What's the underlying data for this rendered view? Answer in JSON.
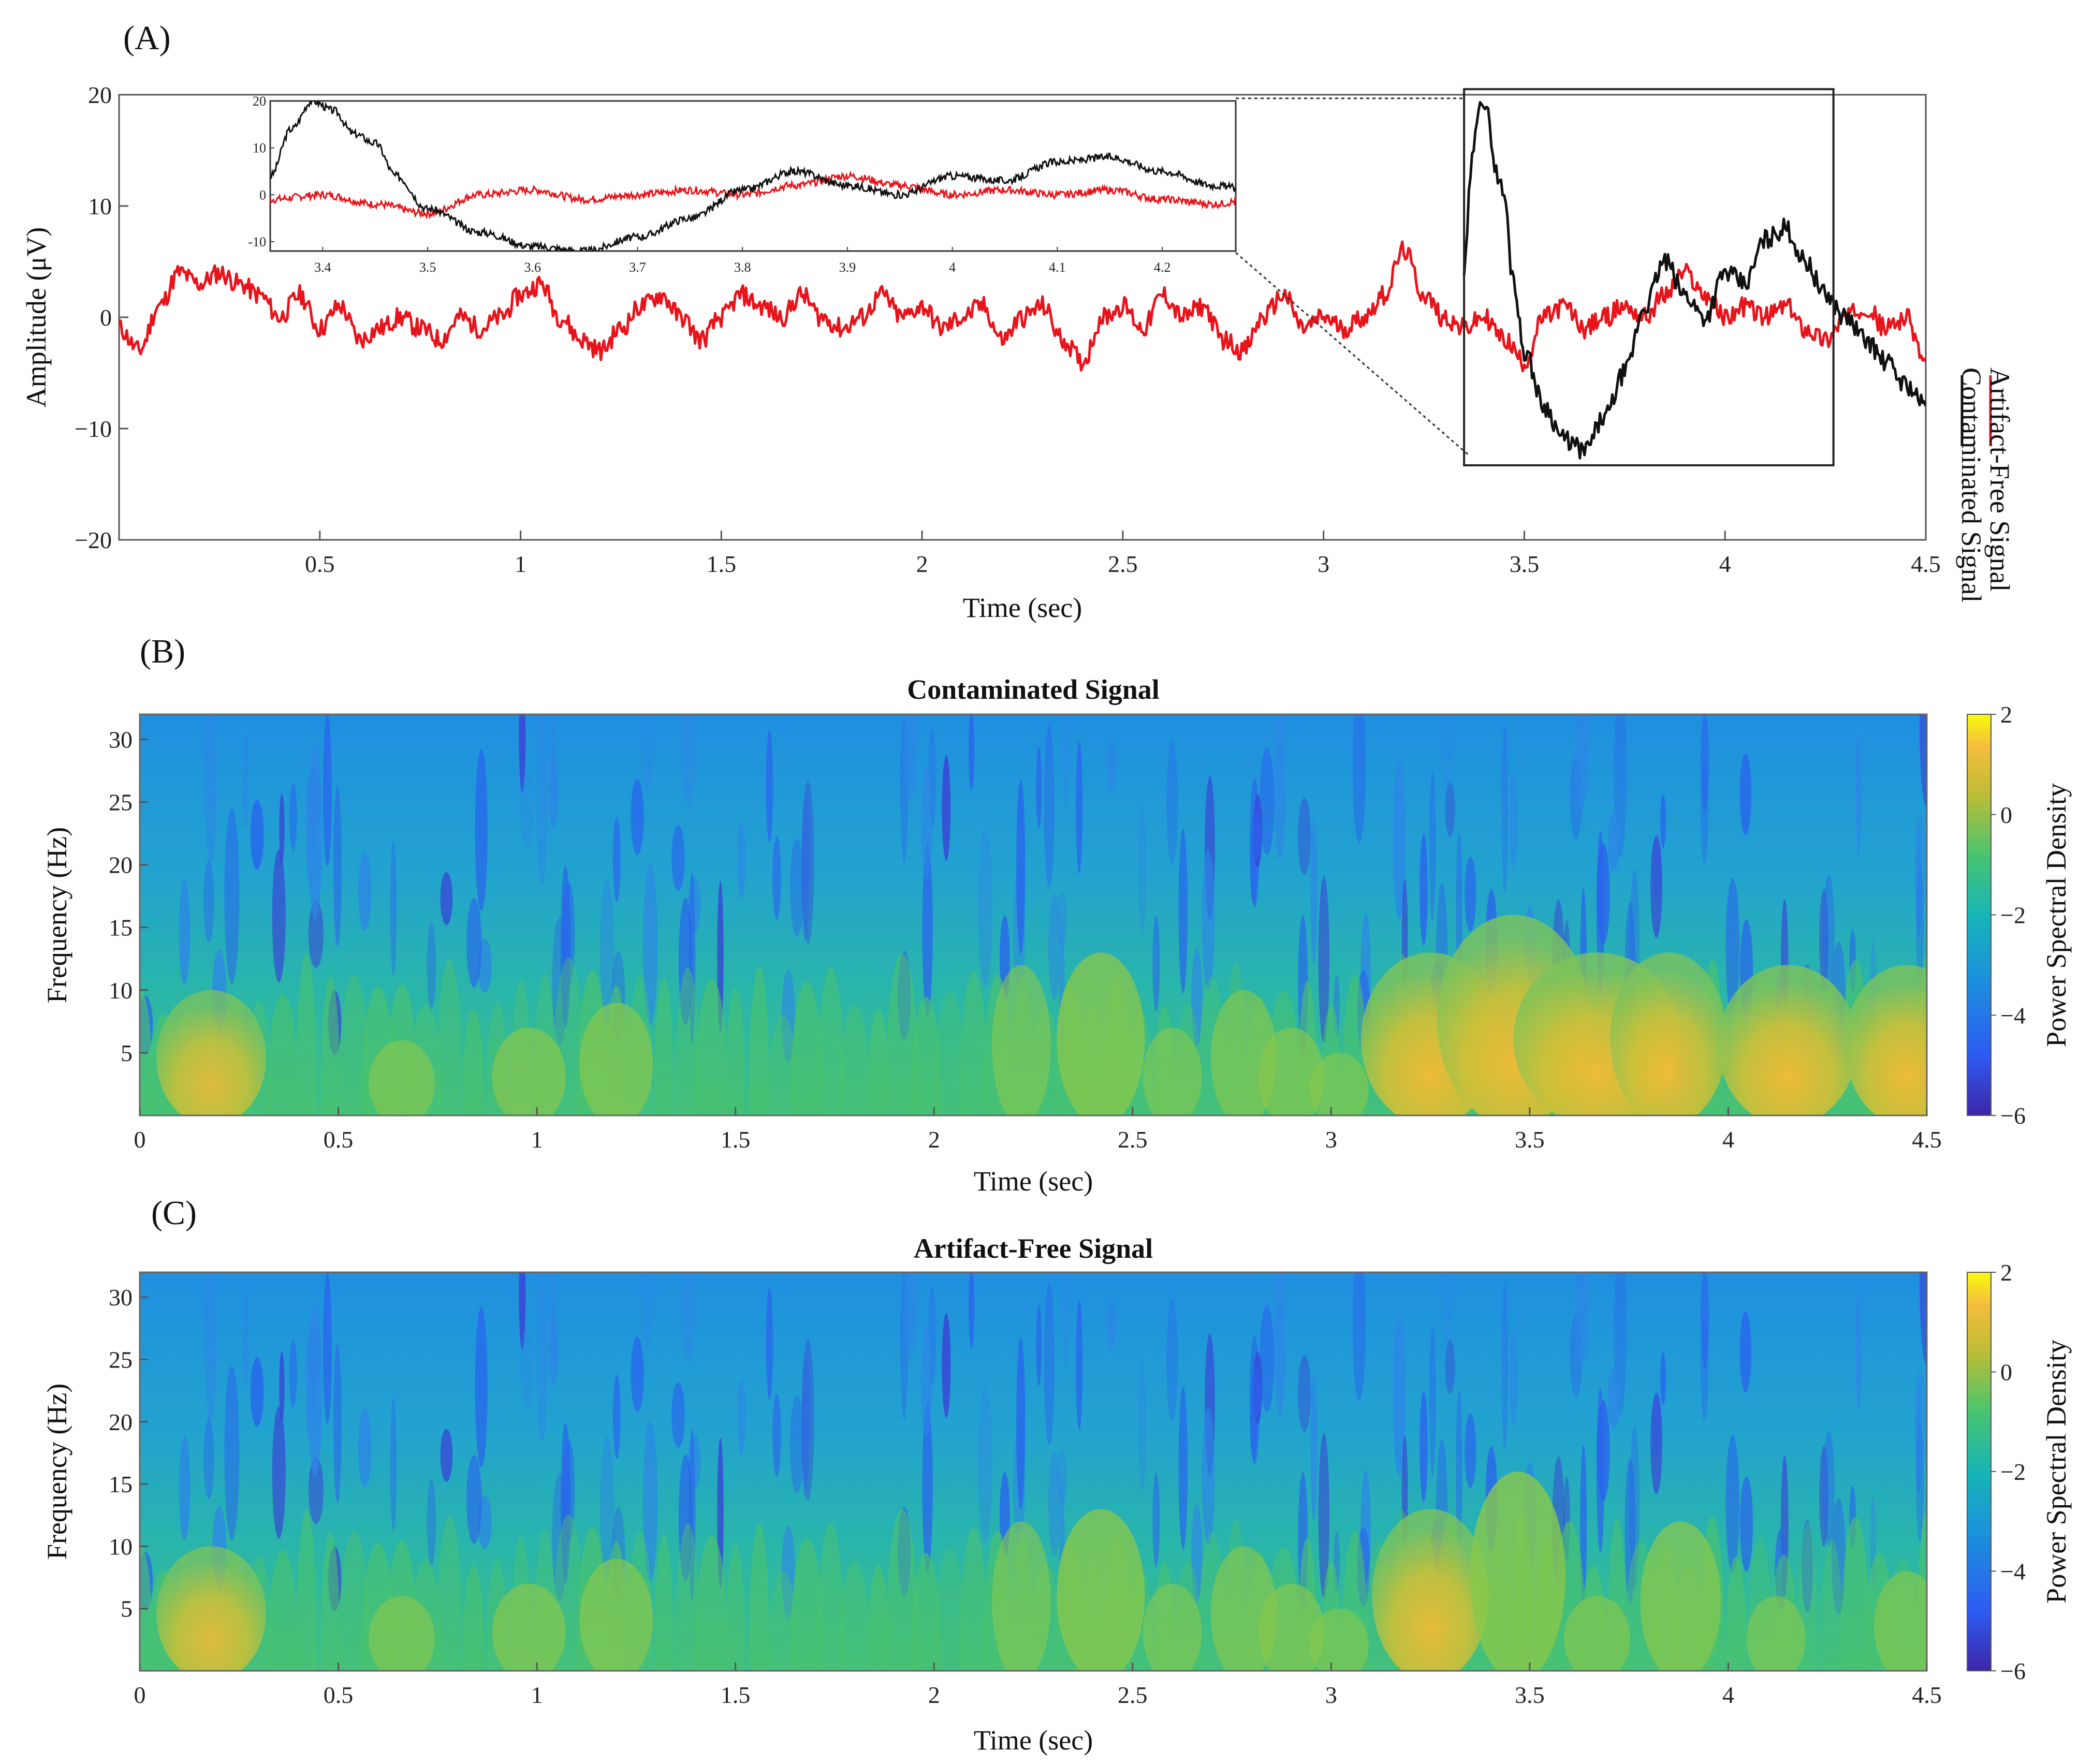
{
  "chart_data": [
    {
      "panel": "(A)",
      "type": "line",
      "xlabel": "Time (sec)",
      "ylabel": "Amplitude (μV)",
      "xlim": [
        0,
        4.5
      ],
      "ylim": [
        -20,
        20
      ],
      "xticks": [
        0.5,
        1,
        1.5,
        2,
        2.5,
        3,
        3.5,
        4,
        4.5
      ],
      "yticks": [
        -20,
        -10,
        0,
        10,
        20
      ],
      "xtick_labels": [
        "0.5",
        "1",
        "1.5",
        "2",
        "2.5",
        "3",
        "3.5",
        "4",
        "4.5"
      ],
      "ytick_labels": [
        "−20",
        "−10",
        "0",
        "10",
        "20"
      ],
      "legend": [
        "Contaminated Signal",
        "Artifact-Free Signal"
      ],
      "legend_position": "right, rotated vertical",
      "series": [
        {
          "name": "Artifact-Free Signal",
          "color": "#e8141b",
          "x": [
            0,
            0.05,
            0.1,
            0.15,
            0.2,
            0.25,
            0.3,
            0.35,
            0.4,
            0.45,
            0.5,
            0.55,
            0.6,
            0.65,
            0.7,
            0.75,
            0.8,
            0.85,
            0.9,
            0.95,
            1.0,
            1.05,
            1.1,
            1.15,
            1.2,
            1.25,
            1.3,
            1.35,
            1.4,
            1.45,
            1.5,
            1.55,
            1.6,
            1.65,
            1.7,
            1.75,
            1.8,
            1.85,
            1.9,
            1.95,
            2.0,
            2.05,
            2.1,
            2.15,
            2.2,
            2.25,
            2.3,
            2.35,
            2.4,
            2.45,
            2.5,
            2.55,
            2.6,
            2.65,
            2.7,
            2.75,
            2.8,
            2.85,
            2.9,
            2.95,
            3.0,
            3.05,
            3.1,
            3.15,
            3.2,
            3.25,
            3.3,
            3.35,
            3.4,
            3.45,
            3.5,
            3.55,
            3.6,
            3.65,
            3.7,
            3.75,
            3.8,
            3.85,
            3.9,
            3.95,
            4.0,
            4.05,
            4.1,
            4.15,
            4.2,
            4.25,
            4.3,
            4.35,
            4.4,
            4.45,
            4.5
          ],
          "y": [
            -1,
            -3,
            1,
            4,
            3,
            4,
            3,
            2,
            0,
            2,
            -1,
            1,
            -2,
            -1,
            0,
            -1,
            -2,
            0,
            -1,
            0,
            2,
            3,
            0,
            -2,
            -3,
            -1,
            1,
            2,
            0,
            -2,
            0,
            2,
            1,
            0,
            2,
            0,
            -1,
            0,
            2,
            0,
            1,
            -1,
            0,
            1,
            -2,
            0,
            1,
            -2,
            -4,
            0,
            1,
            -1,
            2,
            0,
            1,
            -2,
            -3,
            0,
            2,
            -1,
            0,
            -1,
            0,
            2,
            6,
            2,
            0,
            -1,
            0,
            -2,
            -4,
            0,
            1,
            -1,
            0,
            1,
            0,
            2,
            4,
            2,
            0,
            1,
            0,
            1,
            -1,
            -2,
            0,
            1,
            -1,
            0,
            -4
          ]
        },
        {
          "name": "Contaminated Signal",
          "color": "#111111",
          "x": [
            3.35,
            3.37,
            3.39,
            3.41,
            3.43,
            3.45,
            3.47,
            3.5,
            3.55,
            3.6,
            3.65,
            3.7,
            3.75,
            3.8,
            3.85,
            3.9,
            3.95,
            4.0,
            4.05,
            4.1,
            4.15,
            4.2,
            4.25,
            4.3,
            4.35,
            4.4,
            4.45,
            4.5
          ],
          "y": [
            4,
            14,
            20,
            18,
            13,
            11,
            4,
            -3,
            -8,
            -11,
            -12,
            -9,
            -5,
            1,
            5,
            2,
            0,
            4,
            3,
            7,
            8,
            5,
            2,
            0,
            -2,
            -4,
            -6,
            -8
          ]
        }
      ],
      "inset": {
        "xlim": [
          3.35,
          4.27
        ],
        "ylim": [
          -12,
          20
        ],
        "xticks": [
          3.4,
          3.5,
          3.6,
          3.7,
          3.8,
          3.9,
          4,
          4.1,
          4.2
        ],
        "yticks": [
          -10,
          0,
          10,
          20
        ],
        "xtick_labels": [
          "3.4",
          "3.5",
          "3.6",
          "3.7",
          "3.8",
          "3.9",
          "4",
          "4.1",
          "4.2"
        ],
        "ytick_labels": [
          "-10",
          "0",
          "10",
          "20"
        ]
      }
    },
    {
      "panel": "(B)",
      "type": "heatmap",
      "title": "Contaminated Signal",
      "xlabel": "Time (sec)",
      "ylabel": "Frequency (Hz)",
      "colorbar_label": "Power Spectral Density",
      "xlim": [
        0,
        4.5
      ],
      "ylim": [
        0,
        32
      ],
      "xticks": [
        0,
        0.5,
        1,
        1.5,
        2,
        2.5,
        3,
        3.5,
        4,
        4.5
      ],
      "xtick_labels": [
        "0",
        "0.5",
        "1",
        "1.5",
        "2",
        "2.5",
        "3",
        "3.5",
        "4",
        "4.5"
      ],
      "yticks": [
        5,
        10,
        15,
        20,
        25,
        30
      ],
      "ytick_labels": [
        "5",
        "10",
        "15",
        "20",
        "25",
        "30"
      ],
      "clim": [
        -6,
        2
      ],
      "cticks": [
        -6,
        -4,
        -2,
        0,
        2
      ],
      "ctick_labels": [
        "−6",
        "−4",
        "−2",
        "0",
        "2"
      ],
      "hotspots": [
        {
          "t": 0.18,
          "f_max": 10,
          "level": 0.8
        },
        {
          "t": 0.66,
          "f_max": 6,
          "level": 0.2
        },
        {
          "t": 0.98,
          "f_max": 7,
          "level": 0.3
        },
        {
          "t": 1.2,
          "f_max": 9,
          "level": 0.3
        },
        {
          "t": 2.22,
          "f_max": 12,
          "level": 0.1
        },
        {
          "t": 2.42,
          "f_max": 13,
          "level": 0.5
        },
        {
          "t": 2.6,
          "f_max": 7,
          "level": 0.1
        },
        {
          "t": 2.78,
          "f_max": 10,
          "level": 0.2
        },
        {
          "t": 2.9,
          "f_max": 7,
          "level": 0.2
        },
        {
          "t": 3.02,
          "f_max": 5,
          "level": 0.1
        },
        {
          "t": 3.25,
          "f_max": 13,
          "level": 1.2
        },
        {
          "t": 3.46,
          "f_max": 16,
          "level": 1.4
        },
        {
          "t": 3.67,
          "f_max": 13,
          "level": 1.6
        },
        {
          "t": 3.85,
          "f_max": 13,
          "level": 0.9
        },
        {
          "t": 4.15,
          "f_max": 12,
          "level": 1.2
        },
        {
          "t": 4.45,
          "f_max": 12,
          "level": 1.0
        }
      ]
    },
    {
      "panel": "(C)",
      "type": "heatmap",
      "title": "Artifact-Free Signal",
      "xlabel": "Time (sec)",
      "ylabel": "Frequency (Hz)",
      "colorbar_label": "Power Spectral Density",
      "xlim": [
        0,
        4.5
      ],
      "ylim": [
        0,
        32
      ],
      "xticks": [
        0,
        0.5,
        1,
        1.5,
        2,
        2.5,
        3,
        3.5,
        4,
        4.5
      ],
      "xtick_labels": [
        "0",
        "0.5",
        "1",
        "1.5",
        "2",
        "2.5",
        "3",
        "3.5",
        "4",
        "4.5"
      ],
      "yticks": [
        5,
        10,
        15,
        20,
        25,
        30
      ],
      "ytick_labels": [
        "5",
        "10",
        "15",
        "20",
        "25",
        "30"
      ],
      "clim": [
        -6,
        2
      ],
      "cticks": [
        -6,
        -4,
        -2,
        0,
        2
      ],
      "ctick_labels": [
        "−6",
        "−4",
        "−2",
        "0",
        "2"
      ],
      "hotspots": [
        {
          "t": 0.18,
          "f_max": 10,
          "level": 0.8
        },
        {
          "t": 0.66,
          "f_max": 6,
          "level": 0.2
        },
        {
          "t": 0.98,
          "f_max": 7,
          "level": 0.3
        },
        {
          "t": 1.2,
          "f_max": 9,
          "level": 0.3
        },
        {
          "t": 2.22,
          "f_max": 12,
          "level": 0.1
        },
        {
          "t": 2.42,
          "f_max": 13,
          "level": 0.5
        },
        {
          "t": 2.6,
          "f_max": 7,
          "level": 0.1
        },
        {
          "t": 2.78,
          "f_max": 10,
          "level": 0.2
        },
        {
          "t": 2.9,
          "f_max": 7,
          "level": 0.2
        },
        {
          "t": 3.02,
          "f_max": 5,
          "level": 0.1
        },
        {
          "t": 3.25,
          "f_max": 13,
          "level": 0.9
        },
        {
          "t": 3.47,
          "f_max": 16,
          "level": 0.6
        },
        {
          "t": 3.67,
          "f_max": 6,
          "level": 0.2
        },
        {
          "t": 3.88,
          "f_max": 12,
          "level": 0.4
        },
        {
          "t": 4.12,
          "f_max": 6,
          "level": 0.1
        },
        {
          "t": 4.45,
          "f_max": 8,
          "level": 0.2
        }
      ]
    }
  ]
}
